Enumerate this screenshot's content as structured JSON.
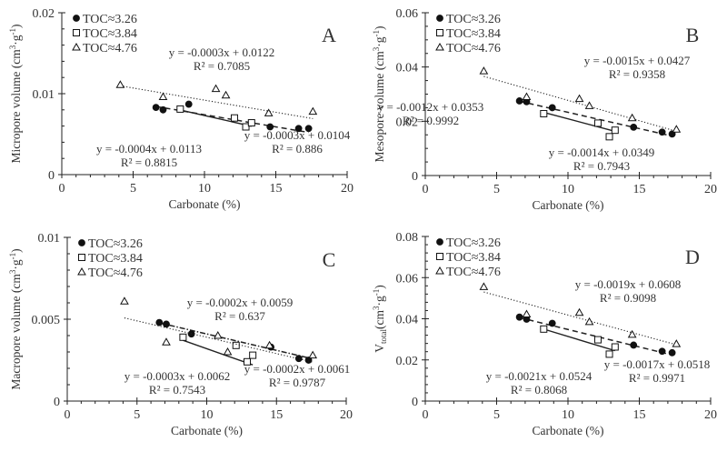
{
  "figure": {
    "series_legend": [
      {
        "name": "TOC≈3.26",
        "marker": "filled-circle"
      },
      {
        "name": "TOC≈3.84",
        "marker": "open-square"
      },
      {
        "name": "TOC≈4.76",
        "marker": "open-triangle"
      }
    ]
  },
  "chart_data": [
    {
      "type": "scatter",
      "panel_label": "A",
      "title": "",
      "xlabel": "Carbonate (%)",
      "ylabel": "Micropore volume (cm³·g⁻¹)",
      "ylabel_main": "Micropore volume (cm",
      "ylabel_unit_tail": "·g",
      "xlim": [
        0,
        20
      ],
      "ylim": [
        0,
        0.02
      ],
      "x_ticks": [
        "0",
        "5",
        "10",
        "15",
        "20"
      ],
      "y_ticks": [
        "0",
        "0.01",
        "0.02"
      ],
      "y_minor_step": 0.002,
      "legend": "top-left",
      "series": [
        {
          "name": "TOC≈3.26",
          "marker": "filled-circle",
          "line": "dashed",
          "x": [
            6.6,
            7.1,
            8.9,
            14.6,
            16.6,
            17.3
          ],
          "y": [
            0.0083,
            0.008,
            0.0087,
            0.0059,
            0.0057,
            0.0057
          ],
          "fit": {
            "slope": -0.0003,
            "intercept": 0.0104,
            "equation": "y = -0.0003x + 0.0104",
            "r2": "R² = 0.886",
            "xrange": [
              6.6,
              17.3
            ]
          }
        },
        {
          "name": "TOC≈3.84",
          "marker": "open-square",
          "line": "solid",
          "x": [
            8.3,
            12.1,
            12.9,
            13.3
          ],
          "y": [
            0.0081,
            0.007,
            0.0059,
            0.0064
          ],
          "fit": {
            "slope": -0.0004,
            "intercept": 0.0113,
            "equation": "y = -0.0004x + 0.0113",
            "r2": "R² = 0.8815",
            "xrange": [
              8.3,
              13.3
            ]
          }
        },
        {
          "name": "TOC≈4.76",
          "marker": "open-triangle",
          "line": "dotted",
          "x": [
            4.1,
            7.1,
            10.8,
            11.5,
            14.5,
            17.6
          ],
          "y": [
            0.0111,
            0.0096,
            0.0106,
            0.0098,
            0.0076,
            0.0078
          ],
          "fit": {
            "slope": -0.0003,
            "intercept": 0.0122,
            "equation": "y = -0.0003x + 0.0122",
            "r2": "R² = 0.7085",
            "xrange": [
              4.1,
              17.6
            ]
          }
        }
      ]
    },
    {
      "type": "scatter",
      "panel_label": "B",
      "title": "",
      "xlabel": "Carbonate (%)",
      "ylabel": "Mesopore volume (cm³·g⁻¹)",
      "ylabel_main": "Mesopore volume (cm",
      "ylabel_unit_tail": "·g",
      "xlim": [
        0,
        20
      ],
      "ylim": [
        0,
        0.06
      ],
      "x_ticks": [
        "0",
        "5",
        "10",
        "15",
        "20"
      ],
      "y_ticks": [
        "0",
        "0.02",
        "0.04",
        "0.06"
      ],
      "y_minor_step": 0.005,
      "legend": "top-left",
      "series": [
        {
          "name": "TOC≈3.26",
          "marker": "filled-circle",
          "line": "dashed",
          "x": [
            6.6,
            7.1,
            8.9,
            14.6,
            16.6,
            17.3
          ],
          "y": [
            0.0275,
            0.0272,
            0.025,
            0.0178,
            0.016,
            0.0153
          ],
          "fit": {
            "slope": -0.0012,
            "intercept": 0.0353,
            "equation": "y = -0.0012x + 0.0353",
            "r2": "R² = 0.9992",
            "xrange": [
              6.6,
              17.3
            ]
          }
        },
        {
          "name": "TOC≈3.84",
          "marker": "open-square",
          "line": "solid",
          "x": [
            8.3,
            12.1,
            12.9,
            13.3
          ],
          "y": [
            0.0228,
            0.0193,
            0.0143,
            0.0167
          ],
          "fit": {
            "slope": -0.0014,
            "intercept": 0.0349,
            "equation": "y = -0.0014x + 0.0349",
            "r2": "R² = 0.7943",
            "xrange": [
              8.3,
              13.3
            ]
          }
        },
        {
          "name": "TOC≈4.76",
          "marker": "open-triangle",
          "line": "dotted",
          "x": [
            4.1,
            7.1,
            10.8,
            11.5,
            14.5,
            17.6
          ],
          "y": [
            0.0385,
            0.029,
            0.0283,
            0.0257,
            0.0212,
            0.017
          ],
          "fit": {
            "slope": -0.0015,
            "intercept": 0.0427,
            "equation": "y = -0.0015x + 0.0427",
            "r2": "R² = 0.9358",
            "xrange": [
              4.1,
              17.6
            ]
          }
        }
      ]
    },
    {
      "type": "scatter",
      "panel_label": "C",
      "title": "",
      "xlabel": "Carbonate (%)",
      "ylabel": "Macropore volume (cm³·g⁻¹)",
      "ylabel_main": "Macropore volume (cm",
      "ylabel_unit_tail": "·g",
      "xlim": [
        0,
        20
      ],
      "ylim": [
        0,
        0.01
      ],
      "x_ticks": [
        "0",
        "5",
        "10",
        "15",
        "20"
      ],
      "y_ticks": [
        "0",
        "0.005",
        "0.01"
      ],
      "y_minor_step": 0.001,
      "legend": "top-left",
      "series": [
        {
          "name": "TOC≈3.26",
          "marker": "filled-circle",
          "line": "dashdot",
          "x": [
            6.6,
            7.1,
            8.9,
            14.6,
            16.6,
            17.3
          ],
          "y": [
            0.0048,
            0.0047,
            0.0041,
            0.0033,
            0.0026,
            0.0025
          ],
          "fit": {
            "slope": -0.0002,
            "intercept": 0.0061,
            "equation": "y = -0.0002x + 0.0061",
            "r2": "R² = 0.9787",
            "xrange": [
              6.6,
              17.3
            ]
          }
        },
        {
          "name": "TOC≈3.84",
          "marker": "open-square",
          "line": "solid",
          "x": [
            8.3,
            12.1,
            12.9,
            13.3
          ],
          "y": [
            0.0039,
            0.0034,
            0.0024,
            0.0028
          ],
          "fit": {
            "slope": -0.0003,
            "intercept": 0.0062,
            "equation": "y = -0.0003x + 0.0062",
            "r2": "R² = 0.7543",
            "xrange": [
              8.3,
              13.3
            ]
          }
        },
        {
          "name": "TOC≈4.76",
          "marker": "open-triangle",
          "line": "dotted",
          "x": [
            4.1,
            7.1,
            10.8,
            11.5,
            14.5,
            17.6
          ],
          "y": [
            0.0061,
            0.0036,
            0.004,
            0.003,
            0.0034,
            0.0028
          ],
          "fit": {
            "slope": -0.0002,
            "intercept": 0.0059,
            "equation": "y = -0.0002x + 0.0059",
            "r2": "R² = 0.637",
            "xrange": [
              4.1,
              17.6
            ]
          }
        }
      ]
    },
    {
      "type": "scatter",
      "panel_label": "D",
      "title": "",
      "xlabel": "Carbonate (%)",
      "ylabel": "Vtotal (cm³·g⁻¹)",
      "ylabel_main": "V",
      "ylabel_sub": "total",
      "ylabel_after_sub": "(cm",
      "ylabel_unit_tail": "·g",
      "xlim": [
        0,
        20
      ],
      "ylim": [
        0,
        0.08
      ],
      "x_ticks": [
        "0",
        "5",
        "10",
        "15",
        "20"
      ],
      "y_ticks": [
        "0",
        "0.02",
        "0.04",
        "0.06",
        "0.08"
      ],
      "y_minor_step": 0.004,
      "legend": "top-left",
      "series": [
        {
          "name": "TOC≈3.26",
          "marker": "filled-circle",
          "line": "dashed",
          "x": [
            6.6,
            7.1,
            8.9,
            14.6,
            16.6,
            17.3
          ],
          "y": [
            0.0408,
            0.0398,
            0.0378,
            0.0272,
            0.0242,
            0.0235
          ],
          "fit": {
            "slope": -0.0017,
            "intercept": 0.0518,
            "equation": "y = -0.0017x + 0.0518",
            "r2": "R² = 0.9971",
            "xrange": [
              6.6,
              17.3
            ]
          }
        },
        {
          "name": "TOC≈3.84",
          "marker": "open-square",
          "line": "solid",
          "x": [
            8.3,
            12.1,
            12.9,
            13.3
          ],
          "y": [
            0.035,
            0.0298,
            0.0228,
            0.0263
          ],
          "fit": {
            "slope": -0.0021,
            "intercept": 0.0524,
            "equation": "y = -0.0021x + 0.0524",
            "r2": "R² = 0.8068",
            "xrange": [
              8.3,
              13.3
            ]
          }
        },
        {
          "name": "TOC≈4.76",
          "marker": "open-triangle",
          "line": "dotted",
          "x": [
            4.1,
            7.1,
            10.8,
            11.5,
            14.5,
            17.6
          ],
          "y": [
            0.0555,
            0.0422,
            0.043,
            0.0385,
            0.0323,
            0.0278
          ],
          "fit": {
            "slope": -0.0019,
            "intercept": 0.0608,
            "equation": "y = -0.0019x + 0.0608",
            "r2": "R² = 0.9098",
            "xrange": [
              4.1,
              17.6
            ]
          }
        }
      ]
    }
  ]
}
